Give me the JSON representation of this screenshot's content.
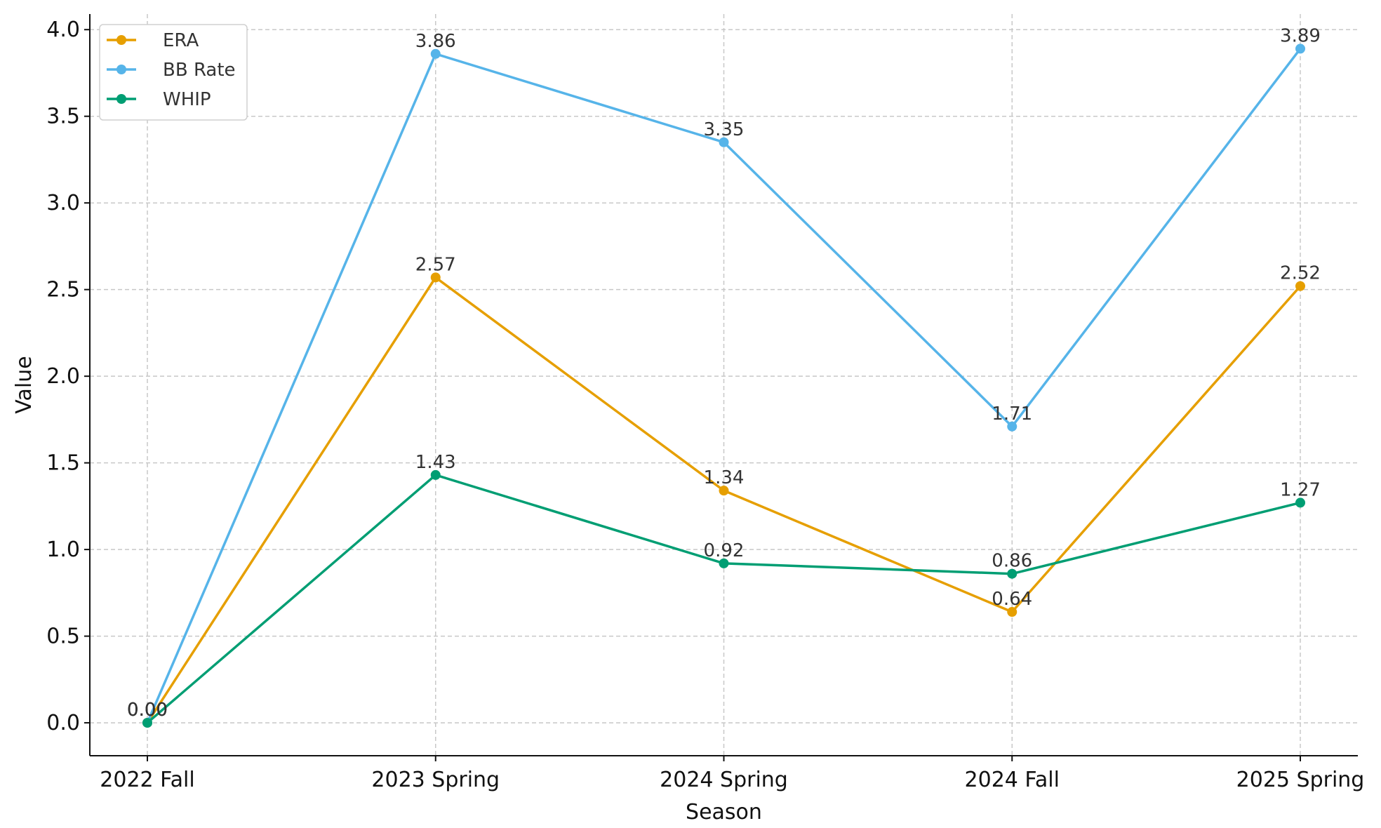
{
  "chart_data": {
    "type": "line",
    "title": "",
    "xlabel": "Season",
    "ylabel": "Value",
    "categories": [
      "2022 Fall",
      "2023 Spring",
      "2024 Spring",
      "2024 Fall",
      "2025 Spring"
    ],
    "ylim": [
      -0.19,
      4.09
    ],
    "yticks": [
      0.0,
      0.5,
      1.0,
      1.5,
      2.0,
      2.5,
      3.0,
      3.5,
      4.0
    ],
    "ytick_labels": [
      "0.0",
      "0.5",
      "1.0",
      "1.5",
      "2.0",
      "2.5",
      "3.0",
      "3.5",
      "4.0"
    ],
    "grid": true,
    "legend_position": "top-left",
    "series": [
      {
        "name": "ERA",
        "color": "#E69F00",
        "values": [
          0.0,
          2.57,
          1.34,
          0.64,
          2.52
        ],
        "labels": [
          "0.00",
          "2.57",
          "1.34",
          "0.64",
          "2.52"
        ]
      },
      {
        "name": "BB Rate",
        "color": "#56B4E9",
        "values": [
          0.0,
          3.86,
          3.35,
          1.71,
          3.89
        ],
        "labels": [
          "0.00",
          "3.86",
          "3.35",
          "1.71",
          "3.89"
        ]
      },
      {
        "name": "WHIP",
        "color": "#009E73",
        "values": [
          0.0,
          1.43,
          0.92,
          0.86,
          1.27
        ],
        "labels": [
          "0.00",
          "1.43",
          "0.92",
          "0.86",
          "1.27"
        ]
      }
    ]
  }
}
